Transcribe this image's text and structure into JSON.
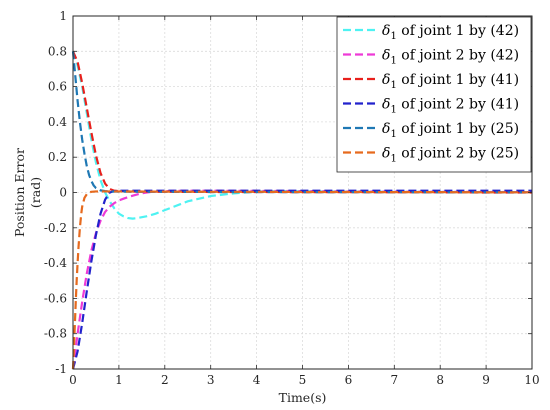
{
  "chart_data": {
    "type": "line",
    "title": "",
    "xlabel": "Time(s)",
    "ylabel_line1": "Position Error",
    "ylabel_line2": "(rad)",
    "xlim": [
      0,
      10
    ],
    "ylim": [
      -1,
      1
    ],
    "xticks": [
      0,
      1,
      2,
      3,
      4,
      5,
      6,
      7,
      8,
      9,
      10
    ],
    "yticks": [
      -1,
      -0.8,
      -0.6,
      -0.4,
      -0.2,
      0,
      0.2,
      0.4,
      0.6,
      0.8,
      1
    ],
    "grid": true,
    "legend_position": "top-right",
    "series": [
      {
        "name_symbol": "δ",
        "name_sub": "1",
        "name_text": " of joint 1 by (42)",
        "color": "#4ef2f2",
        "x": [
          0,
          0.1,
          0.2,
          0.3,
          0.4,
          0.5,
          0.6,
          0.7,
          0.8,
          0.9,
          1.0,
          1.1,
          1.2,
          1.3,
          1.4,
          1.5,
          1.6,
          1.8,
          2.0,
          2.2,
          2.5,
          3.0,
          3.5,
          4.0,
          4.5,
          5.0,
          6.0,
          7.0,
          8.0,
          9.0,
          10.0
        ],
        "y": [
          0.8,
          0.72,
          0.6,
          0.45,
          0.3,
          0.17,
          0.07,
          0.0,
          -0.05,
          -0.09,
          -0.12,
          -0.135,
          -0.145,
          -0.148,
          -0.145,
          -0.14,
          -0.135,
          -0.12,
          -0.1,
          -0.08,
          -0.05,
          -0.02,
          -0.005,
          0.005,
          0.008,
          0.007,
          0.005,
          0.004,
          0.003,
          0.002,
          0.001
        ]
      },
      {
        "name_symbol": "δ",
        "name_sub": "1",
        "name_text": " of joint 2 by (42)",
        "color": "#ee3ad6",
        "x": [
          0,
          0.1,
          0.2,
          0.3,
          0.4,
          0.5,
          0.6,
          0.7,
          0.8,
          0.9,
          1.0,
          1.1,
          1.2,
          1.3,
          1.4,
          1.5,
          1.6,
          1.7,
          1.8,
          1.9,
          2.0,
          2.2,
          2.5,
          3.0,
          4.0,
          5.0,
          6.0,
          7.0,
          8.0,
          9.0,
          10.0
        ],
        "y": [
          -1.0,
          -0.8,
          -0.62,
          -0.46,
          -0.33,
          -0.23,
          -0.16,
          -0.11,
          -0.08,
          -0.06,
          -0.045,
          -0.035,
          -0.026,
          -0.018,
          -0.011,
          -0.005,
          0.0,
          0.003,
          0.005,
          0.007,
          0.008,
          0.009,
          0.01,
          0.01,
          0.009,
          0.008,
          0.006,
          0.005,
          0.004,
          0.003,
          0.002
        ]
      },
      {
        "name_symbol": "δ",
        "name_sub": "1",
        "name_text": " of joint 1 by (41)",
        "color": "#e8201c",
        "x": [
          0,
          0.1,
          0.2,
          0.3,
          0.4,
          0.5,
          0.6,
          0.7,
          0.8,
          0.9,
          1.0,
          1.2,
          1.5,
          2.0,
          3.0,
          4.0,
          5.0,
          6.0,
          7.0,
          8.0,
          9.0,
          10.0
        ],
        "y": [
          0.8,
          0.74,
          0.62,
          0.48,
          0.34,
          0.21,
          0.11,
          0.05,
          0.02,
          0.01,
          0.008,
          0.006,
          0.005,
          0.004,
          0.003,
          0.003,
          0.002,
          0.002,
          0.001,
          0.001,
          0.0,
          0.0
        ]
      },
      {
        "name_symbol": "δ",
        "name_sub": "1",
        "name_text": " of joint 2 by (41)",
        "color": "#2222cc",
        "x": [
          0,
          0.1,
          0.2,
          0.3,
          0.4,
          0.5,
          0.6,
          0.7,
          0.8,
          0.9,
          1.0,
          1.2,
          1.5,
          2.0,
          3.0,
          4.0,
          5.0,
          6.0,
          7.0,
          8.0,
          9.0,
          10.0
        ],
        "y": [
          -1.0,
          -0.9,
          -0.74,
          -0.56,
          -0.39,
          -0.24,
          -0.12,
          -0.04,
          0.0,
          0.008,
          0.01,
          0.01,
          0.01,
          0.01,
          0.01,
          0.01,
          0.01,
          0.01,
          0.01,
          0.01,
          0.01,
          0.01
        ]
      },
      {
        "name_symbol": "δ",
        "name_sub": "1",
        "name_text": " of joint 1 by (25)",
        "color": "#1f78b4",
        "x": [
          0,
          0.05,
          0.1,
          0.15,
          0.2,
          0.25,
          0.3,
          0.35,
          0.4,
          0.45,
          0.5,
          0.6,
          0.7,
          0.8,
          1.0,
          1.5,
          2.0,
          3.0,
          4.0,
          5.0,
          6.0,
          7.0,
          8.0,
          9.0,
          10.0
        ],
        "y": [
          0.8,
          0.66,
          0.52,
          0.4,
          0.3,
          0.22,
          0.15,
          0.1,
          0.065,
          0.04,
          0.025,
          0.012,
          0.008,
          0.006,
          0.005,
          0.004,
          0.004,
          0.003,
          0.003,
          0.002,
          0.002,
          0.002,
          0.001,
          0.001,
          0.001
        ]
      },
      {
        "name_symbol": "δ",
        "name_sub": "1",
        "name_text": " of joint 2 by (25)",
        "color": "#e66a1e",
        "x": [
          0,
          0.02,
          0.04,
          0.06,
          0.08,
          0.1,
          0.12,
          0.15,
          0.18,
          0.2,
          0.25,
          0.3,
          0.35,
          0.4,
          0.5,
          0.7,
          1.0,
          2.0,
          3.0,
          4.0,
          5.0,
          6.0,
          7.0,
          8.0,
          9.0,
          10.0
        ],
        "y": [
          -1.0,
          -0.88,
          -0.75,
          -0.62,
          -0.5,
          -0.4,
          -0.31,
          -0.2,
          -0.12,
          -0.08,
          -0.03,
          -0.01,
          0.0,
          0.004,
          0.006,
          0.006,
          0.006,
          0.005,
          0.004,
          0.004,
          0.003,
          0.003,
          0.002,
          0.002,
          0.001,
          0.001
        ]
      }
    ]
  }
}
